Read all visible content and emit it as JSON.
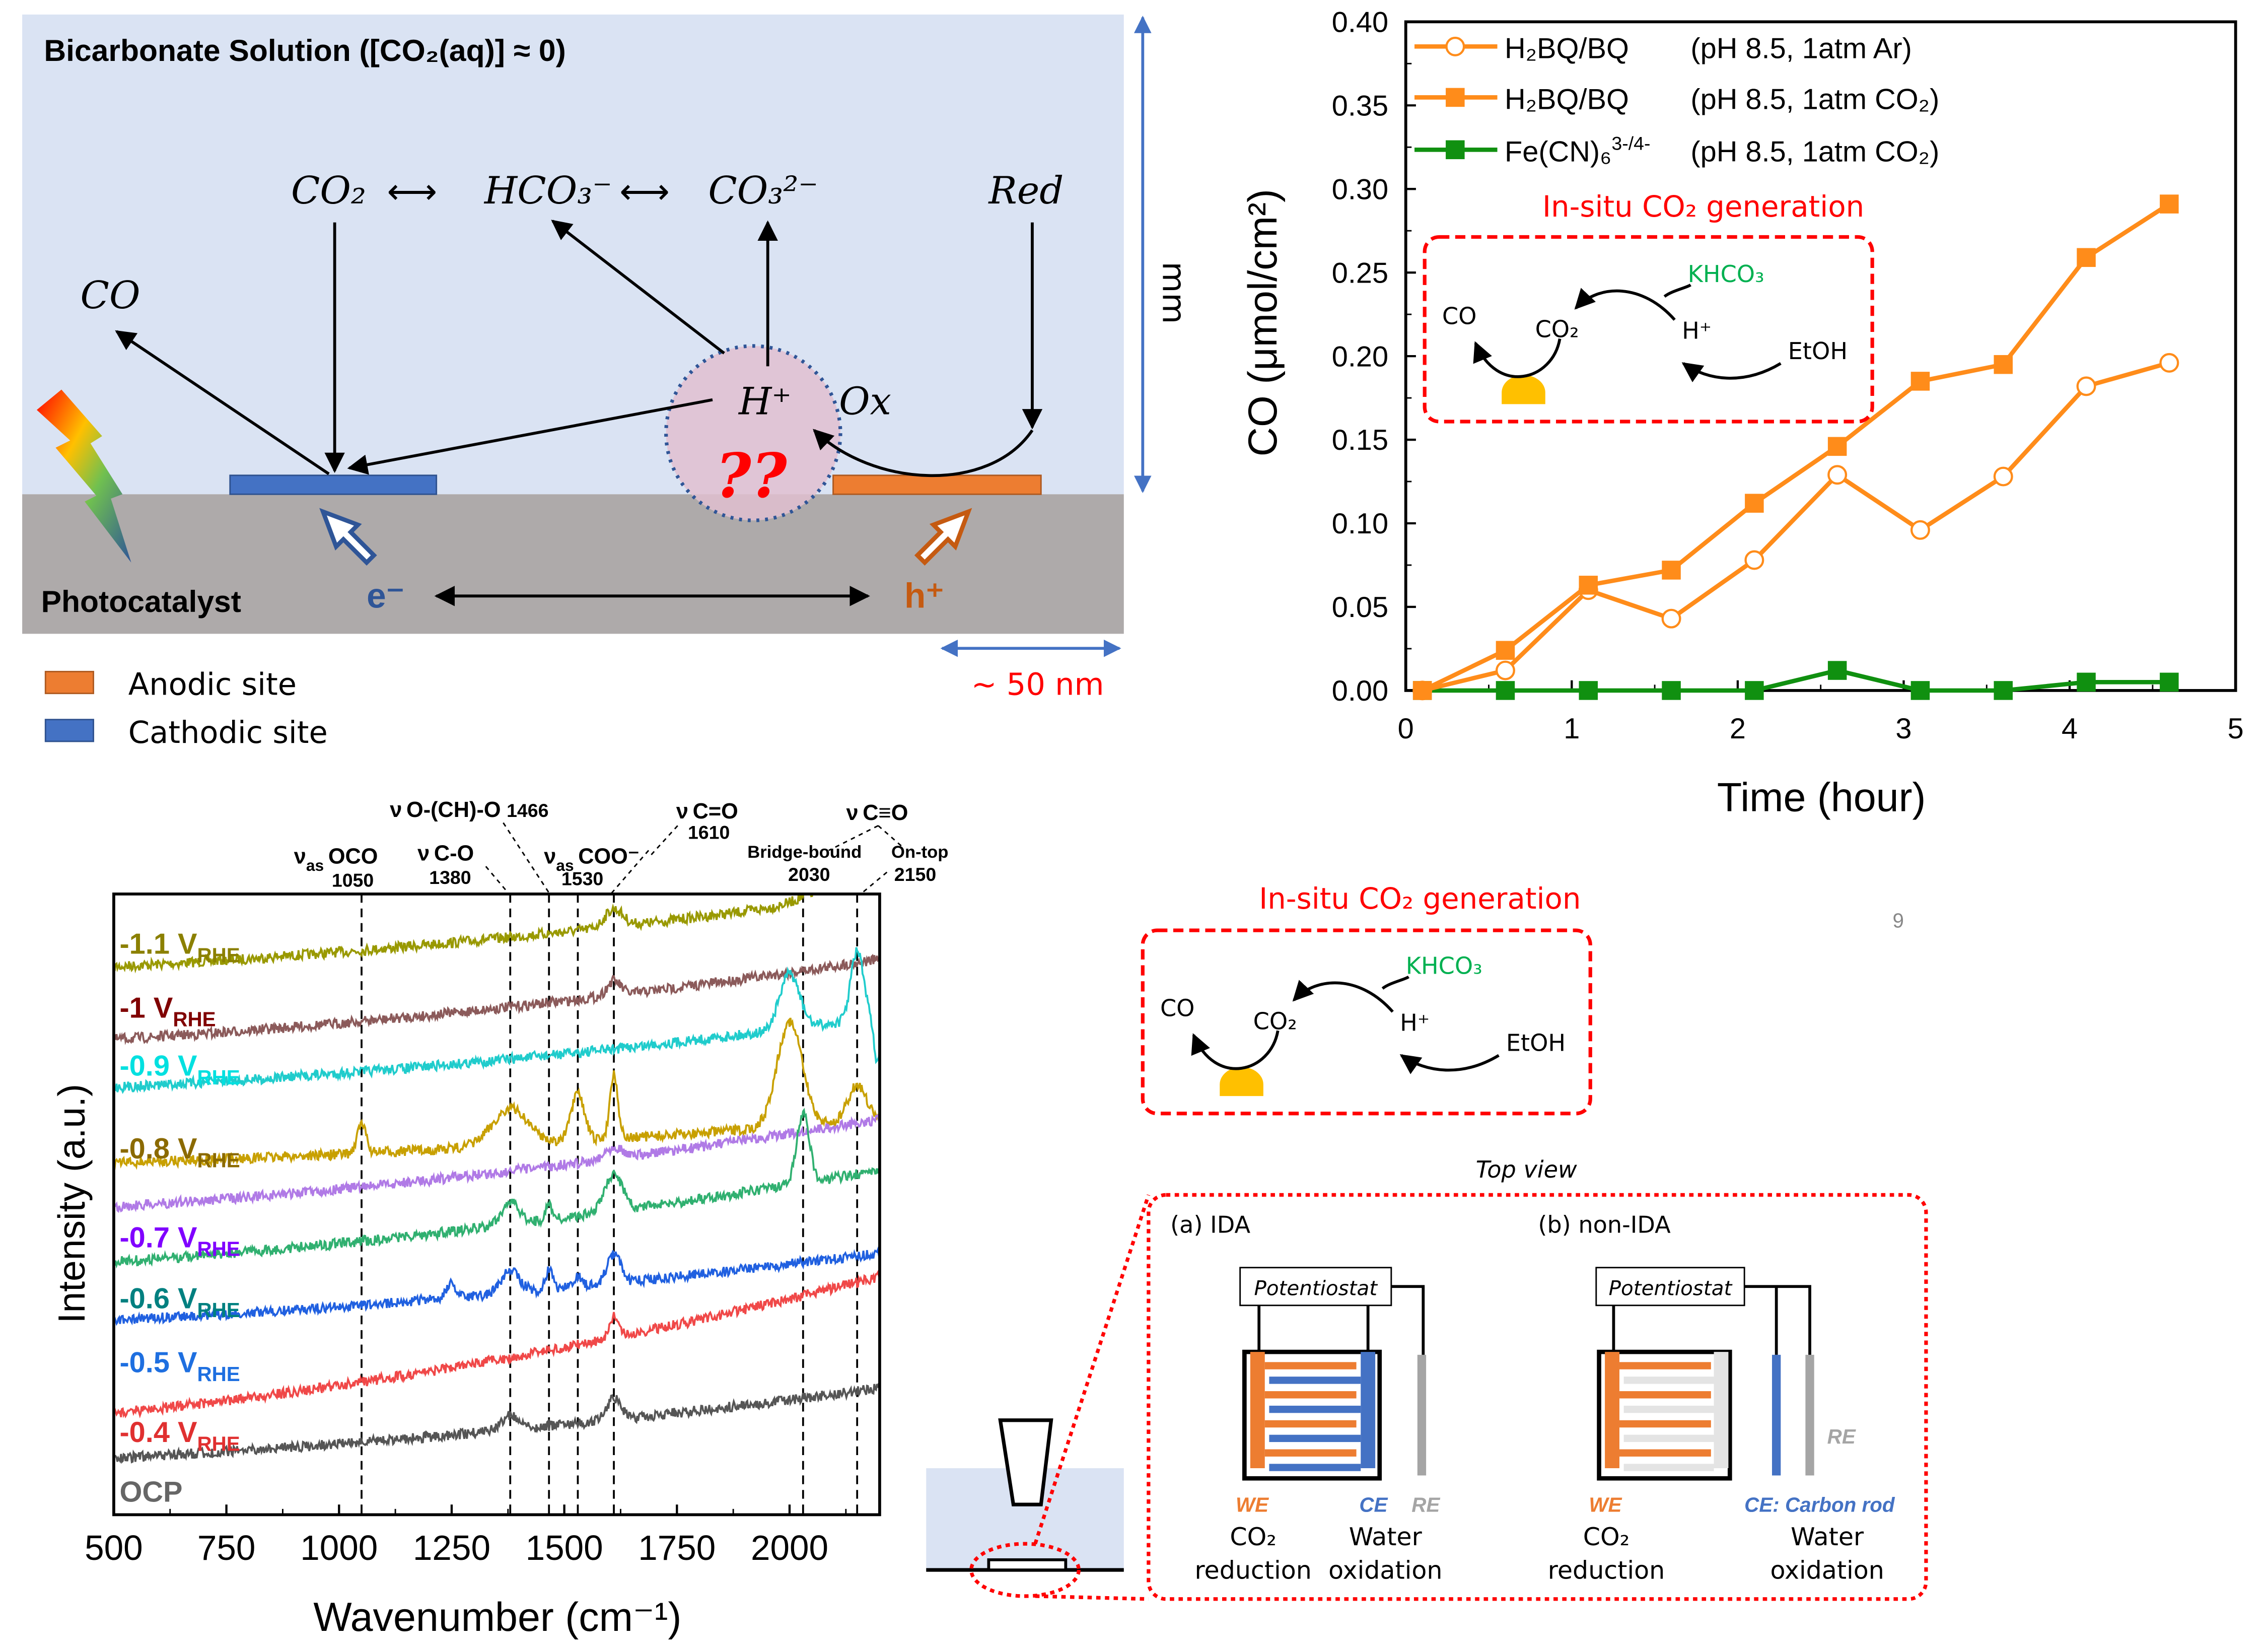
{
  "top_left": {
    "title": "Bicarbonate Solution ([CO₂(aq)] ≈ 0)",
    "species": {
      "co2": "CO₂",
      "arrow1": "⟷",
      "hco3": "HCO₃⁻",
      "arrow2": "⟷",
      "co3": "CO₃²⁻",
      "red": "Red",
      "co": "CO",
      "h_plus": "H⁺",
      "ox": "Ox",
      "unknown": "??"
    },
    "electron": "e⁻",
    "hole": "h⁺",
    "substrate_label": "Photocatalyst",
    "vertical_scale": "mm",
    "horizontal_scale": "~ 50 nm",
    "legend": [
      {
        "label": "Anodic site",
        "color": "#ed7d31"
      },
      {
        "label": "Cathodic site",
        "color": "#4472c4"
      }
    ],
    "colors": {
      "solution": "#dae3f3",
      "substrate": "#aeaaaa",
      "cathode": "#4472c4",
      "anode": "#ed7d31",
      "scale": "#4472c4"
    }
  },
  "inset": {
    "title": "In-situ CO₂ generation",
    "co": "CO",
    "co2": "CO₂",
    "khco3": "KHCO₃",
    "h_plus": "H⁺",
    "etoh": "EtOH",
    "colors": {
      "title": "#ff0000",
      "khco3": "#00b050",
      "catalyst": "#ffc000"
    }
  },
  "page_number": "9",
  "cell_diagram": {
    "top_view": "Top view",
    "a": {
      "title": "(a) IDA",
      "potentiostat": "Potentiostat",
      "we": "WE",
      "ce": "CE",
      "re": "RE",
      "we_role": [
        "CO₂",
        "reduction"
      ],
      "ce_role": [
        "Water",
        "oxidation"
      ]
    },
    "b": {
      "title": "(b) non-IDA",
      "potentiostat": "Potentiostat",
      "we": "WE",
      "ce": "CE: Carbon rod",
      "re": "RE",
      "we_role": [
        "CO₂",
        "reduction"
      ],
      "ce_role": [
        "Water",
        "oxidation"
      ]
    },
    "colors": {
      "we": "#ed7d31",
      "ce": "#4472c4",
      "re": "#a5a5a5"
    }
  },
  "chart_data": [
    {
      "type": "line",
      "title": "",
      "xlabel": "Time (hour)",
      "ylabel": "CO (μmol/cm²)",
      "xlim": [
        0,
        5
      ],
      "ylim": [
        0,
        0.4
      ],
      "xticks": [
        "0",
        "1",
        "2",
        "3",
        "4",
        "5"
      ],
      "yticks": [
        "0.00",
        "0.05",
        "0.10",
        "0.15",
        "0.20",
        "0.25",
        "0.30",
        "0.35",
        "0.40"
      ],
      "legend_position": "top-left",
      "x": [
        0.1,
        0.6,
        1.1,
        1.6,
        2.1,
        2.6,
        3.1,
        3.6,
        4.1,
        4.6
      ],
      "series": [
        {
          "name": "H₂BQ/BQ",
          "condition": "(pH 8.5, 1atm Ar)",
          "color": "#ff8c1a",
          "marker": "open-circle",
          "values": [
            0.0,
            0.012,
            0.06,
            0.043,
            0.078,
            0.129,
            0.096,
            0.128,
            0.182,
            0.196
          ]
        },
        {
          "name": "H₂BQ/BQ",
          "condition": "(pH 8.5, 1atm CO₂)",
          "color": "#ff8c1a",
          "marker": "filled-square",
          "values": [
            0.0,
            0.024,
            0.063,
            0.072,
            0.112,
            0.146,
            0.185,
            0.195,
            0.259,
            0.291
          ]
        },
        {
          "name": "Fe(CN)₆",
          "name_sup": "3-/4-",
          "condition": "(pH 8.5, 1atm CO₂)",
          "color": "#109010",
          "marker": "filled-square",
          "values": [
            0.0,
            0.0,
            0.0,
            0.0,
            0.0,
            0.012,
            0.0,
            0.0,
            0.005,
            0.005
          ]
        }
      ]
    },
    {
      "type": "line",
      "title": "",
      "xlabel": "Wavenumber (cm⁻¹)",
      "ylabel": "Intensity (a.u.)",
      "xlim": [
        500,
        2200
      ],
      "xticks": [
        "500",
        "750",
        "1000",
        "1250",
        "1500",
        "1750",
        "2000"
      ],
      "tick_values": [
        500,
        750,
        1000,
        1250,
        1500,
        1750,
        2000
      ],
      "peak_lines": [
        1050,
        1380,
        1466,
        1530,
        1610,
        2030,
        2150
      ],
      "annotations": [
        {
          "nu": "ν",
          "sub": "as",
          "group": "OCO",
          "value": "1050"
        },
        {
          "nu": "ν",
          "sub": "",
          "group": "C-O",
          "value": "1380"
        },
        {
          "nu": "ν",
          "sub": "",
          "group": "O-(CH)-O",
          "value": "1466"
        },
        {
          "nu": "ν",
          "sub": "as",
          "group": "COO⁻",
          "value": "1530"
        },
        {
          "nu": "ν",
          "sub": "",
          "group": "C=O",
          "value": "1610"
        },
        {
          "nu": "ν",
          "sub": "",
          "group": "C≡O",
          "value": ""
        },
        {
          "nu": "",
          "sub": "",
          "group": "Bridge-bound",
          "value": "2030"
        },
        {
          "nu": "",
          "sub": "",
          "group": "On-top",
          "value": "2150"
        }
      ],
      "series": [
        {
          "name": "-1.1 V",
          "sub": "RHE",
          "color": "#999900",
          "label_color": "#8b8000"
        },
        {
          "name": "-1 V",
          "sub": "RHE",
          "color": "#8b5a5a",
          "label_color": "#800000"
        },
        {
          "name": "-0.9 V",
          "sub": "RHE",
          "color": "#20cccc",
          "label_color": "#00e0e0"
        },
        {
          "name": "-0.8 V",
          "sub": "RHE",
          "color": "#c8a000",
          "label_color": "#8b6a00"
        },
        {
          "name": "-0.7 V",
          "sub": "RHE",
          "color": "#b07ae6",
          "label_color": "#8000ff"
        },
        {
          "name": "-0.6 V",
          "sub": "RHE",
          "color": "#30b070",
          "label_color": "#008080"
        },
        {
          "name": "-0.5 V",
          "sub": "RHE",
          "color": "#2060e0",
          "label_color": "#1e6fe0"
        },
        {
          "name": "-0.4 V",
          "sub": "RHE",
          "color": "#f04848",
          "label_color": "#e03030"
        },
        {
          "name": "OCP",
          "sub": "",
          "color": "#555555",
          "label_color": "#666666"
        }
      ]
    }
  ]
}
